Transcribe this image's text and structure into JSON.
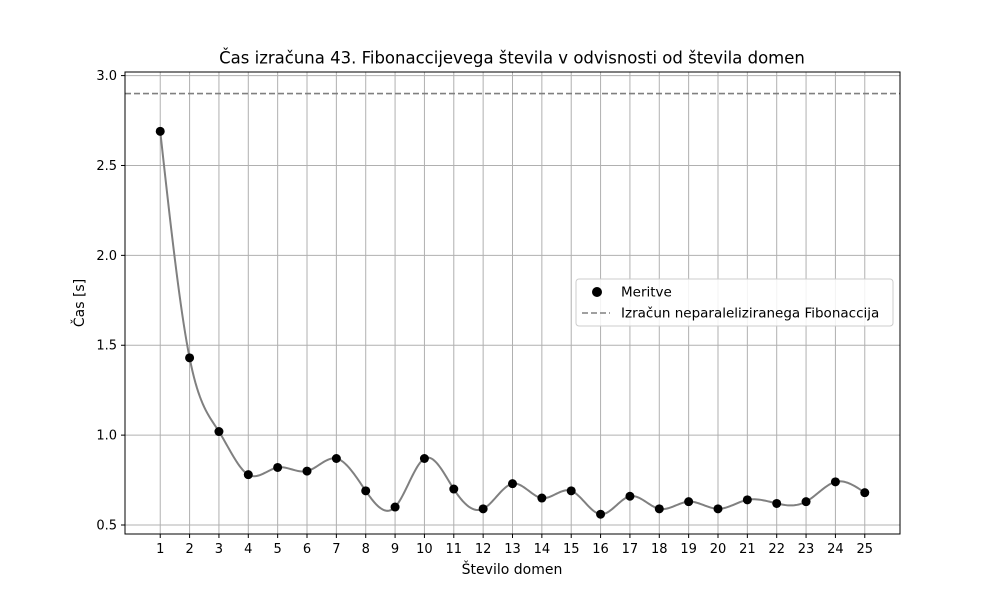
{
  "chart_data": {
    "type": "line",
    "title": "Čas izračuna 43. Fibonaccijevega števila v odvisnosti od števila domen",
    "xlabel": "Število domen",
    "ylabel": "Čas [s]",
    "x": [
      1,
      2,
      3,
      4,
      5,
      6,
      7,
      8,
      9,
      10,
      11,
      12,
      13,
      14,
      15,
      16,
      17,
      18,
      19,
      20,
      21,
      22,
      23,
      24,
      25
    ],
    "xticks": [
      "1",
      "2",
      "3",
      "4",
      "5",
      "6",
      "7",
      "8",
      "9",
      "10",
      "11",
      "12",
      "13",
      "14",
      "15",
      "16",
      "17",
      "18",
      "19",
      "20",
      "21",
      "22",
      "23",
      "24",
      "25"
    ],
    "xlim": [
      -0.2,
      26.2
    ],
    "ylim": [
      0.45,
      3.02
    ],
    "yticks": [
      "0.5",
      "1.0",
      "1.5",
      "2.0",
      "2.5",
      "3.0"
    ],
    "ytick_values": [
      0.5,
      1.0,
      1.5,
      2.0,
      2.5,
      3.0
    ],
    "grid": true,
    "series": [
      {
        "name": "Meritve",
        "style": "markers",
        "color": "#000000",
        "values": [
          2.69,
          1.43,
          1.02,
          0.78,
          0.82,
          0.8,
          0.87,
          0.69,
          0.6,
          0.87,
          0.7,
          0.59,
          0.73,
          0.65,
          0.69,
          0.56,
          0.66,
          0.59,
          0.63,
          0.59,
          0.64,
          0.62,
          0.63,
          0.74,
          0.68
        ]
      },
      {
        "name": "Izračun neparaleliziranega Fibonaccija",
        "style": "dashed",
        "color": "#808080",
        "value": 2.9
      }
    ],
    "smooth_curve_color": "#808080",
    "legend_position": "center-right"
  }
}
